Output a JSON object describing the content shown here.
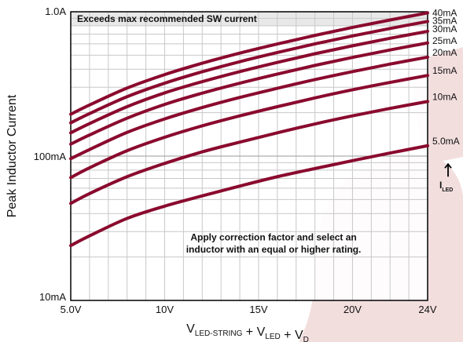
{
  "chart_data": {
    "type": "line",
    "xlabel_parts": [
      {
        "text": "V",
        "sub": "LED-STRING"
      },
      {
        "text": " + V",
        "sub": "LED"
      },
      {
        "text": " + V",
        "sub": "D"
      }
    ],
    "ylabel": "Peak Inductor Current",
    "x_scale": "linear",
    "y_scale": "log",
    "xlim": [
      5,
      24
    ],
    "ylim": [
      10,
      1000
    ],
    "x_tick_values": [
      5,
      10,
      15,
      20,
      24
    ],
    "x_tick_labels": [
      "5.0V",
      "10V",
      "15V",
      "20V",
      "24V"
    ],
    "y_tick_values": [
      10,
      100,
      1000
    ],
    "y_tick_labels": [
      "10mA",
      "100mA",
      "1.0A"
    ],
    "grid": true,
    "series_values_unit": "mA",
    "x": [
      5,
      6,
      8,
      10,
      12,
      14,
      16,
      18,
      20,
      22,
      24
    ],
    "series": [
      {
        "name": "5.0mA",
        "values": [
          24,
          28,
          37,
          45,
          53,
          62,
          72,
          82,
          93,
          105,
          118
        ]
      },
      {
        "name": "10mA",
        "values": [
          47,
          55,
          72,
          89,
          107,
          125,
          145,
          167,
          190,
          214,
          239
        ]
      },
      {
        "name": "15mA",
        "values": [
          71,
          83,
          109,
          135,
          162,
          190,
          220,
          253,
          288,
          324,
          362
        ]
      },
      {
        "name": "20mA",
        "values": [
          96,
          111,
          146,
          181,
          217,
          255,
          295,
          339,
          385,
          434,
          485
        ]
      },
      {
        "name": "25mA",
        "values": [
          121,
          140,
          183,
          228,
          273,
          320,
          370,
          425,
          483,
          544,
          608
        ]
      },
      {
        "name": "30mA",
        "values": [
          145,
          168,
          220,
          274,
          328,
          385,
          446,
          512,
          581,
          655,
          732
        ]
      },
      {
        "name": "35mA",
        "values": [
          170,
          197,
          258,
          320,
          384,
          451,
          522,
          599,
          680,
          766,
          857
        ]
      },
      {
        "name": "40mA",
        "values": [
          195,
          226,
          296,
          367,
          440,
          517,
          598,
          686,
          779,
          877,
          982
        ]
      }
    ],
    "curve_label_anchor_values": [
      118,
      239,
      362,
      485,
      597,
      730,
      855,
      982
    ],
    "legend_title": {
      "text": "I",
      "sub": "LED"
    },
    "shaded_region": {
      "label": "Exceeds max recommended SW current",
      "y_from": 800,
      "y_to": 1000
    },
    "annotation": [
      "Apply correction factor and select an",
      "inductor with an equal or higher rating."
    ],
    "colors": {
      "curve": "#8a0a2e",
      "grid": "#c8c8c8",
      "band": "#e8e8e8",
      "watermark": "#f3dede"
    }
  }
}
